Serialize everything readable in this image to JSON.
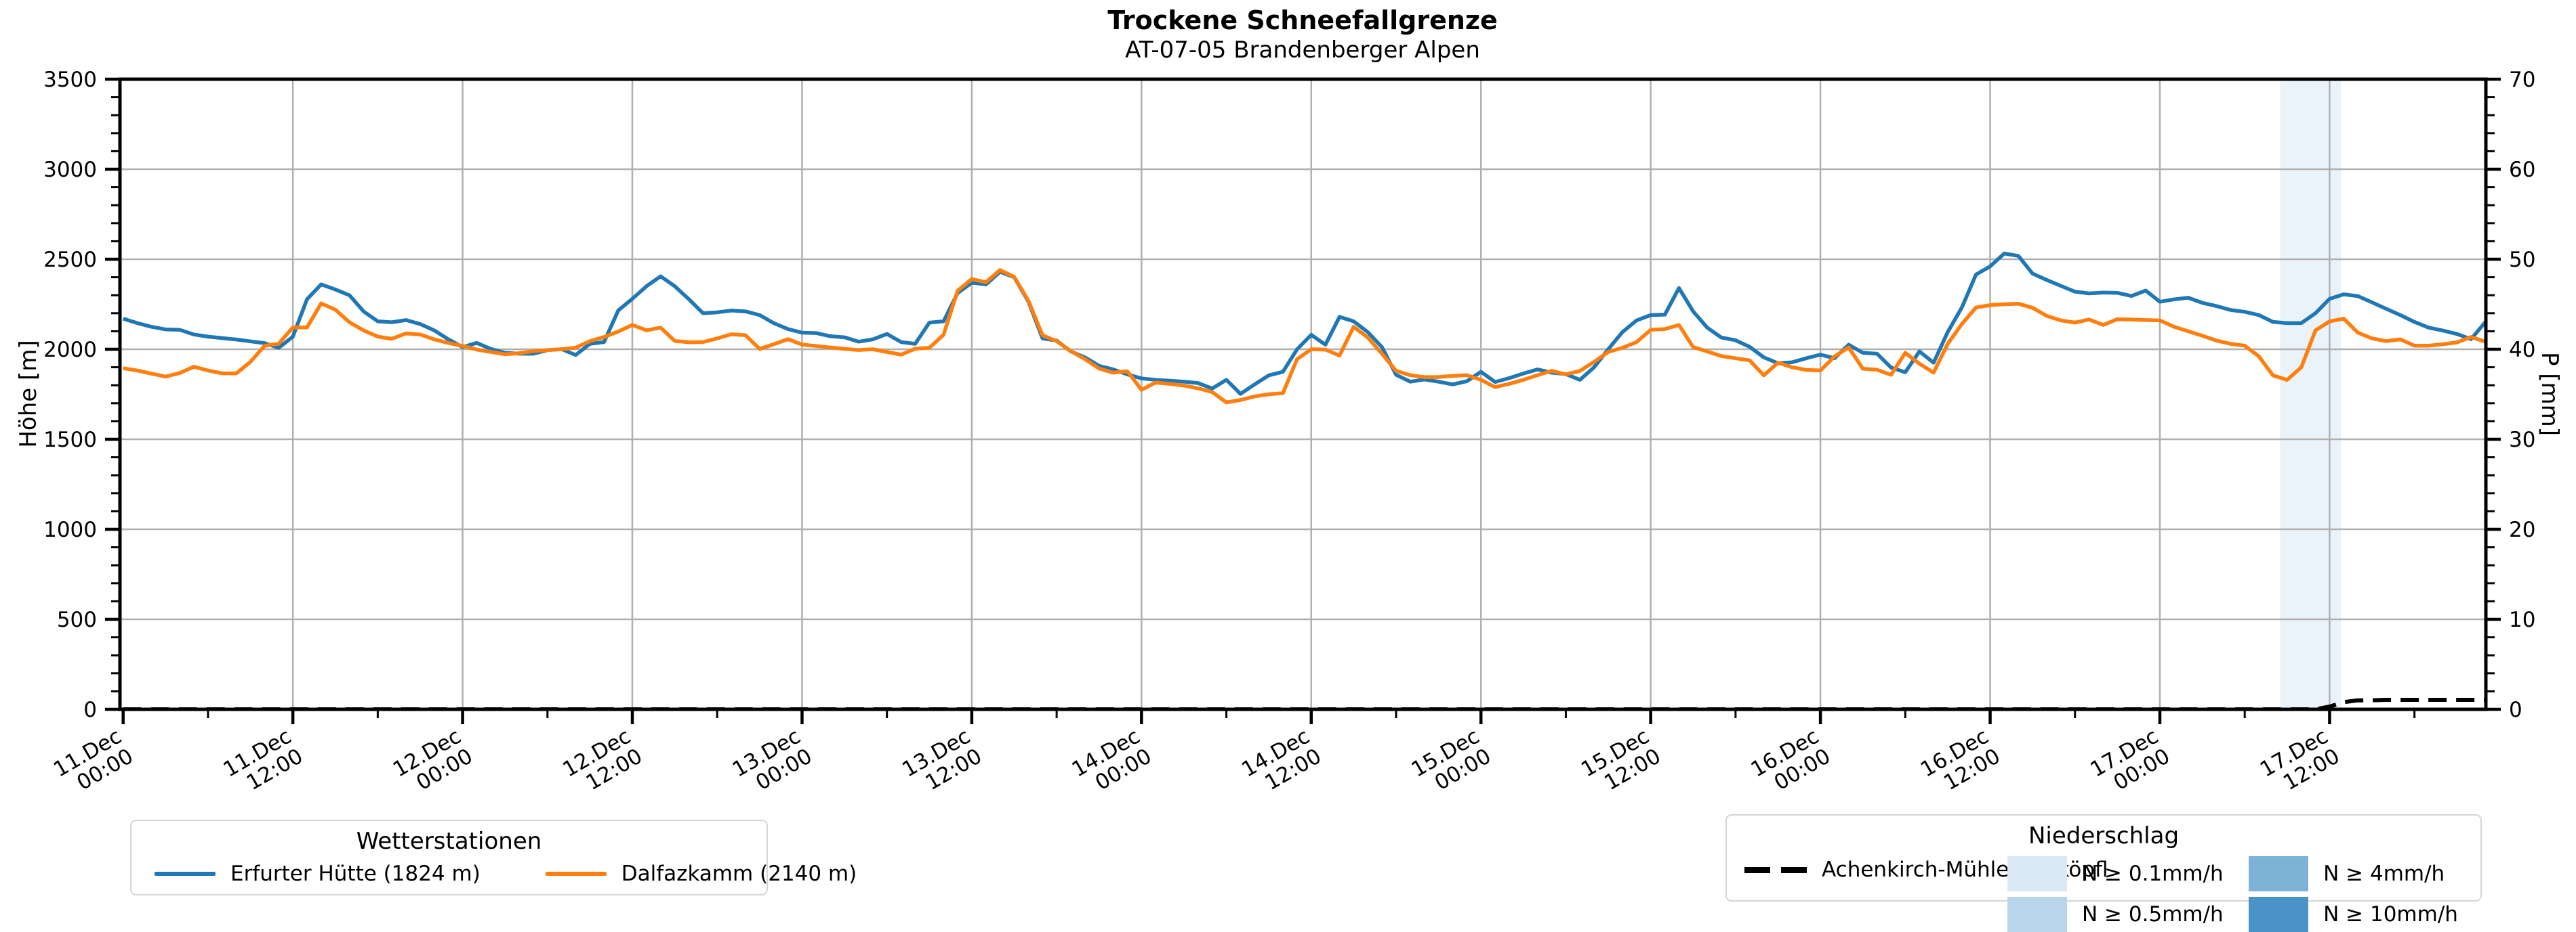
{
  "header": {
    "title": "Trockene Schneefallgrenze",
    "subtitle": "AT-07-05 Brandenberger Alpen"
  },
  "axes": {
    "y_left_label": "Höhe [m]",
    "y_left_ticks": [
      0,
      500,
      1000,
      1500,
      2000,
      2500,
      3000,
      3500
    ],
    "y_right_label": "P [mm]",
    "y_right_ticks": [
      0,
      10,
      20,
      30,
      40,
      50,
      60,
      70
    ],
    "x_tick_hours": [
      0,
      12,
      24,
      36,
      48,
      60,
      72,
      84,
      96,
      108,
      120,
      132,
      144,
      156
    ],
    "x_tick_labels": [
      [
        "11.Dec",
        "00:00"
      ],
      [
        "11.Dec",
        "12:00"
      ],
      [
        "12.Dec",
        "00:00"
      ],
      [
        "12.Dec",
        "12:00"
      ],
      [
        "13.Dec",
        "00:00"
      ],
      [
        "13.Dec",
        "12:00"
      ],
      [
        "14.Dec",
        "00:00"
      ],
      [
        "14.Dec",
        "12:00"
      ],
      [
        "15.Dec",
        "00:00"
      ],
      [
        "15.Dec",
        "12:00"
      ],
      [
        "16.Dec",
        "00:00"
      ],
      [
        "16.Dec",
        "12:00"
      ],
      [
        "17.Dec",
        "00:00"
      ],
      [
        "17.Dec",
        "12:00"
      ]
    ]
  },
  "legend_stations": {
    "title": "Wetterstationen",
    "items": [
      {
        "label": "Erfurter Hütte (1824 m)",
        "color": "#1f77b4"
      },
      {
        "label": "Dalfazkamm (2140 m)",
        "color": "#ff7f0e"
      }
    ]
  },
  "legend_precip": {
    "title": "Niederschlag",
    "line_item": {
      "label": "Achenkirch-Mühleggerköpfl",
      "color": "#000000"
    },
    "patch_items": [
      {
        "label": "N ≥ 0.1mm/h",
        "color": "#dbe9f6"
      },
      {
        "label": "N ≥ 0.5mm/h",
        "color": "#b9d5eb"
      },
      {
        "label": "N ≥ 4mm/h",
        "color": "#7eb2d7"
      },
      {
        "label": "N ≥ 10mm/h",
        "color": "#4a94c8"
      }
    ]
  },
  "chart_data": {
    "type": "line",
    "title": "Trockene Schneefallgrenze",
    "subtitle": "AT-07-05 Brandenberger Alpen",
    "xlabel": "",
    "ylabel_left": "Höhe [m]",
    "ylabel_right": "P [mm]",
    "x_unit": "hours since 11.Dec 00:00",
    "x_range": [
      0,
      167
    ],
    "ylim_left": [
      0,
      3500
    ],
    "ylim_right": [
      0,
      70
    ],
    "grid": true,
    "legend_position": "below",
    "series": [
      {
        "name": "Erfurter Hütte (1824 m)",
        "axis": "left",
        "color": "#1f77b4",
        "style": "solid",
        "values": [
          2170,
          2145,
          2125,
          2110,
          2108,
          2082,
          2070,
          2062,
          2054,
          2044,
          2034,
          2008,
          2070,
          2278,
          2360,
          2332,
          2300,
          2210,
          2155,
          2150,
          2162,
          2140,
          2105,
          2055,
          2012,
          2035,
          2002,
          1980,
          1975,
          1975,
          1995,
          2000,
          1968,
          2030,
          2040,
          2215,
          2280,
          2350,
          2405,
          2350,
          2278,
          2200,
          2205,
          2215,
          2210,
          2190,
          2145,
          2112,
          2092,
          2090,
          2072,
          2066,
          2042,
          2055,
          2085,
          2040,
          2030,
          2148,
          2155,
          2312,
          2370,
          2360,
          2430,
          2400,
          2265,
          2060,
          2048,
          1988,
          1955,
          1908,
          1888,
          1860,
          1838,
          1830,
          1825,
          1820,
          1812,
          1782,
          1830,
          1752,
          1805,
          1855,
          1875,
          2000,
          2080,
          2025,
          2180,
          2155,
          2095,
          2012,
          1858,
          1820,
          1832,
          1820,
          1805,
          1822,
          1875,
          1818,
          1840,
          1865,
          1888,
          1870,
          1862,
          1830,
          1900,
          2000,
          2095,
          2160,
          2190,
          2192,
          2340,
          2210,
          2120,
          2065,
          2050,
          2013,
          1955,
          1922,
          1928,
          1950,
          1970,
          1950,
          2025,
          1980,
          1975,
          1898,
          1872,
          1988,
          1925,
          2095,
          2232,
          2415,
          2460,
          2532,
          2518,
          2420,
          2385,
          2352,
          2320,
          2310,
          2315,
          2313,
          2296,
          2326,
          2264,
          2277,
          2286,
          2258,
          2240,
          2218,
          2208,
          2190,
          2152,
          2145,
          2145,
          2200,
          2280,
          2305,
          2295,
          2260,
          2225,
          2190,
          2152,
          2120,
          2104,
          2085,
          2056,
          2150
        ]
      },
      {
        "name": "Dalfazkamm (2140 m)",
        "axis": "left",
        "color": "#ff7f0e",
        "style": "solid",
        "values": [
          1895,
          1882,
          1865,
          1848,
          1868,
          1903,
          1882,
          1866,
          1866,
          1930,
          2019,
          2031,
          2121,
          2121,
          2255,
          2220,
          2150,
          2105,
          2070,
          2058,
          2088,
          2082,
          2055,
          2035,
          2018,
          1998,
          1985,
          1972,
          1978,
          1990,
          1995,
          2000,
          2009,
          2045,
          2068,
          2098,
          2135,
          2105,
          2120,
          2046,
          2039,
          2040,
          2060,
          2083,
          2078,
          2002,
          2028,
          2056,
          2026,
          2018,
          2010,
          2002,
          1996,
          2000,
          1985,
          1970,
          2003,
          2008,
          2080,
          2325,
          2390,
          2372,
          2440,
          2402,
          2270,
          2078,
          2045,
          1990,
          1945,
          1893,
          1870,
          1878,
          1775,
          1815,
          1808,
          1798,
          1783,
          1762,
          1705,
          1718,
          1738,
          1750,
          1756,
          1945,
          2000,
          1998,
          1965,
          2125,
          2065,
          1975,
          1880,
          1856,
          1845,
          1846,
          1852,
          1856,
          1830,
          1790,
          1808,
          1830,
          1856,
          1880,
          1860,
          1880,
          1930,
          1985,
          2008,
          2040,
          2108,
          2112,
          2135,
          2012,
          1988,
          1962,
          1950,
          1938,
          1855,
          1925,
          1900,
          1885,
          1882,
          1960,
          2010,
          1892,
          1886,
          1858,
          1980,
          1920,
          1870,
          2030,
          2140,
          2232,
          2245,
          2250,
          2253,
          2230,
          2185,
          2160,
          2148,
          2165,
          2135,
          2167,
          2165,
          2162,
          2160,
          2125,
          2100,
          2075,
          2048,
          2030,
          2020,
          1960,
          1855,
          1830,
          1900,
          2105,
          2155,
          2170,
          2092,
          2060,
          2045,
          2055,
          2020,
          2020,
          2028,
          2038,
          2068,
          2042
        ]
      },
      {
        "name": "Achenkirch-Mühleggerköpfl",
        "axis": "right",
        "color": "#000000",
        "style": "dashed",
        "values": [
          0,
          0,
          0,
          0,
          0,
          0,
          0,
          0,
          0,
          0,
          0,
          0,
          0,
          0,
          0,
          0,
          0,
          0,
          0,
          0,
          0,
          0,
          0,
          0,
          0,
          0,
          0,
          0,
          0,
          0,
          0,
          0,
          0,
          0,
          0,
          0,
          0,
          0,
          0,
          0,
          0,
          0,
          0,
          0,
          0,
          0,
          0,
          0,
          0,
          0,
          0,
          0,
          0,
          0,
          0,
          0,
          0,
          0,
          0,
          0,
          0,
          0,
          0,
          0,
          0,
          0,
          0,
          0,
          0,
          0,
          0,
          0,
          0,
          0,
          0,
          0,
          0,
          0,
          0,
          0,
          0,
          0,
          0,
          0,
          0,
          0,
          0,
          0,
          0,
          0,
          0,
          0,
          0,
          0,
          0,
          0,
          0,
          0,
          0,
          0,
          0,
          0,
          0,
          0,
          0,
          0,
          0,
          0,
          0,
          0,
          0,
          0,
          0,
          0,
          0,
          0,
          0,
          0,
          0,
          0,
          0,
          0,
          0,
          0,
          0,
          0,
          0,
          0,
          0,
          0,
          0,
          0,
          0,
          0,
          0,
          0,
          0,
          0,
          0,
          0,
          0,
          0,
          0,
          0,
          0,
          0,
          0,
          0,
          0,
          0,
          0,
          0,
          0,
          0,
          0,
          0,
          0.3,
          0.8,
          1.0,
          1.0,
          1.05,
          1.05,
          1.05,
          1.05,
          1.05,
          1.05,
          1.05,
          1.05
        ]
      }
    ],
    "precip_band": {
      "level": "N ≥ 0.1mm/h",
      "color": "#dbe9f6",
      "x_start_hour": 152.5,
      "x_end_hour": 156.8
    }
  }
}
